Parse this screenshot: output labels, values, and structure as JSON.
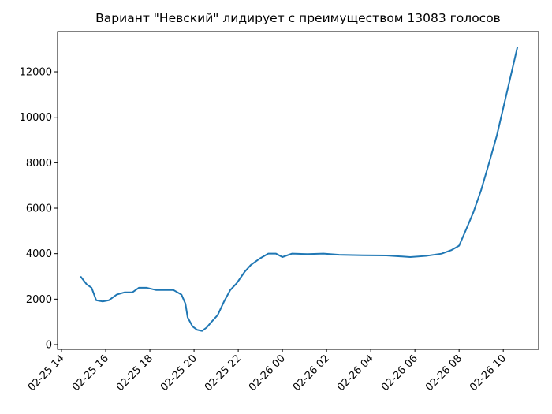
{
  "chart_data": {
    "type": "line",
    "title": "Вариант \"Невский\" лидирует с преимуществом 13083 голосов",
    "x": [
      14.86,
      15.14,
      15.36,
      15.57,
      15.86,
      16.14,
      16.5,
      16.86,
      17.21,
      17.5,
      17.86,
      18.29,
      18.71,
      19.07,
      19.43,
      19.61,
      19.71,
      19.93,
      20.14,
      20.36,
      20.57,
      20.79,
      21.07,
      21.36,
      21.64,
      21.93,
      22.29,
      22.57,
      23.0,
      23.36,
      23.71,
      24.0,
      24.43,
      25.14,
      25.86,
      26.57,
      27.64,
      28.71,
      29.79,
      30.5,
      31.21,
      31.64,
      32.0,
      32.29,
      32.64,
      33.0,
      33.36,
      33.71,
      34.07,
      34.43,
      34.64
    ],
    "series": [
      {
        "color": "#1f77b4",
        "values": [
          3000,
          2650,
          2500,
          1950,
          1900,
          1950,
          2200,
          2300,
          2300,
          2500,
          2500,
          2400,
          2400,
          2400,
          2200,
          1800,
          1200,
          800,
          650,
          600,
          750,
          1000,
          1300,
          1900,
          2400,
          2700,
          3200,
          3500,
          3800,
          4000,
          4000,
          3850,
          4000,
          3980,
          4000,
          3950,
          3930,
          3920,
          3850,
          3900,
          4000,
          4150,
          4350,
          5000,
          5800,
          6800,
          8000,
          9200,
          10700,
          12200,
          13083
        ]
      }
    ],
    "xlim": [
      13.82,
      35.6
    ],
    "xticks": [
      {
        "value": 14,
        "label": "02-25 14"
      },
      {
        "value": 16,
        "label": "02-25 16"
      },
      {
        "value": 18,
        "label": "02-25 18"
      },
      {
        "value": 20,
        "label": "02-25 20"
      },
      {
        "value": 22,
        "label": "02-25 22"
      },
      {
        "value": 24,
        "label": "02-26 00"
      },
      {
        "value": 26,
        "label": "02-26 02"
      },
      {
        "value": 28,
        "label": "02-26 04"
      },
      {
        "value": 30,
        "label": "02-26 06"
      },
      {
        "value": 32,
        "label": "02-26 08"
      },
      {
        "value": 34,
        "label": "02-26 10"
      }
    ],
    "ylim": [
      -208,
      13770
    ],
    "yticks": [
      0,
      2000,
      4000,
      6000,
      8000,
      10000,
      12000
    ]
  }
}
